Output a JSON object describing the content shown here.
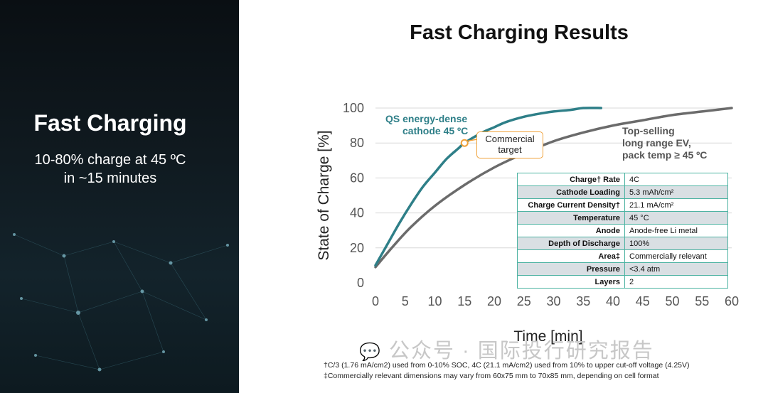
{
  "left": {
    "title": "Fast Charging",
    "subtitle_line1": "10-80% charge at 45 ºC",
    "subtitle_line2": "in ~15 minutes"
  },
  "slide_title": "Fast Charging Results",
  "chart_data": {
    "type": "line",
    "xlabel": "Time [min]",
    "ylabel": "State of Charge [%]",
    "xlim": [
      0,
      60
    ],
    "ylim": [
      0,
      100
    ],
    "xticks": [
      "0",
      "5",
      "10",
      "15",
      "20",
      "25",
      "30",
      "35",
      "40",
      "45",
      "50",
      "55",
      "60"
    ],
    "yticks": [
      "0",
      "20",
      "40",
      "60",
      "80",
      "100"
    ],
    "grid": "horizontal",
    "series": [
      {
        "name": "QS energy-dense cathode 45 ºC",
        "color": "#2e7f88",
        "x": [
          0,
          2,
          4,
          6,
          8,
          10,
          12,
          14,
          15,
          18,
          20,
          22,
          25,
          28,
          30,
          33,
          35,
          38
        ],
        "y": [
          10,
          22,
          34,
          45,
          55,
          63,
          71,
          77,
          80,
          86,
          89,
          92,
          95,
          97,
          98,
          99,
          100,
          100
        ]
      },
      {
        "name": "Top-selling long range EV, pack temp ≥ 45 ºC",
        "color": "#6b6b6b",
        "x": [
          0,
          3,
          6,
          10,
          15,
          20,
          25,
          30,
          35,
          40,
          45,
          50,
          55,
          60
        ],
        "y": [
          9,
          21,
          32,
          44,
          56,
          66,
          74,
          81,
          86,
          90,
          93,
          96,
          98,
          100
        ]
      }
    ],
    "annotations": {
      "qs_label_1": "QS energy-dense",
      "qs_label_2": "cathode 45 ºC",
      "ev_label_1": "Top-selling",
      "ev_label_2": "long range EV,",
      "ev_label_3": "pack temp ≥ 45 ºC",
      "callout_1": "Commercial",
      "callout_2": "target",
      "marker": {
        "x": 15,
        "y": 80
      }
    },
    "table": [
      {
        "key": "Charge† Rate",
        "value": "4C"
      },
      {
        "key": "Cathode Loading",
        "value": "5.3 mAh/cm²"
      },
      {
        "key": "Charge Current Density†",
        "value": "21.1 mA/cm²"
      },
      {
        "key": "Temperature",
        "value": "45 °C"
      },
      {
        "key": "Anode",
        "value": "Anode-free Li metal"
      },
      {
        "key": "Depth of Discharge",
        "value": "100%"
      },
      {
        "key": "Area‡",
        "value": "Commercially relevant"
      },
      {
        "key": "Pressure",
        "value": "<3.4 atm"
      },
      {
        "key": "Layers",
        "value": "2"
      }
    ]
  },
  "footnotes": {
    "line1": "†C/3 (1.76 mA/cm2) used from 0-10% SOC, 4C (21.1 mA/cm2) used from 10% to upper cut-off voltage (4.25V)",
    "line2": "‡Commercially relevant dimensions may vary from 60x75 mm to 70x85 mm, depending on cell format"
  },
  "watermark": "公众号 · 国际投行研究报告",
  "colors": {
    "qs_teal": "#2e7f88",
    "ev_gray": "#6b6b6b",
    "callout_orange": "#f0a23a",
    "table_border": "#4db3a2"
  }
}
